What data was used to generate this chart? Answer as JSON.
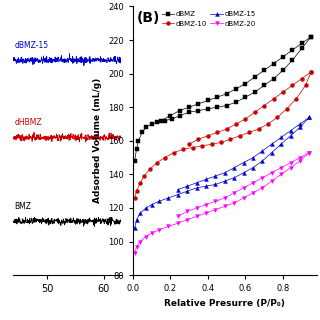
{
  "panel_A": {
    "xlim": [
      44,
      63
    ],
    "ylim": [
      -0.5,
      3.5
    ],
    "x_ticks": [
      50,
      60
    ],
    "lines": [
      {
        "label": "dBMZ-15",
        "y_offset": 2.7,
        "color": "#0000cc",
        "noise": 0.025
      },
      {
        "label": "dHBMZ",
        "y_offset": 1.55,
        "color": "#cc0000",
        "noise": 0.025
      },
      {
        "label": "BMZ",
        "y_offset": 0.3,
        "color": "#000000",
        "noise": 0.025
      }
    ]
  },
  "panel_B": {
    "label": "(B)",
    "xlabel": "Relative Presurre (P/P₀)",
    "ylabel": "Adsorbed Volume (mL/g)",
    "xlim": [
      0.0,
      0.98
    ],
    "ylim": [
      80,
      240
    ],
    "x_ticks": [
      0.0,
      0.2,
      0.4,
      0.6,
      0.8
    ],
    "y_ticks": [
      80,
      100,
      120,
      140,
      160,
      180,
      200,
      220,
      240
    ],
    "series": [
      {
        "label": "dBMZ",
        "color": "#000000",
        "marker": "s",
        "adsorption_x": [
          0.01,
          0.02,
          0.03,
          0.05,
          0.07,
          0.1,
          0.13,
          0.17,
          0.21,
          0.25,
          0.3,
          0.35,
          0.4,
          0.45,
          0.5,
          0.55,
          0.6,
          0.65,
          0.7,
          0.75,
          0.8,
          0.85,
          0.9,
          0.95
        ],
        "adsorption_y": [
          148,
          155,
          160,
          165,
          168,
          170,
          171,
          172,
          173,
          175,
          177,
          178,
          179,
          180,
          181,
          183,
          186,
          189,
          193,
          197,
          202,
          208,
          215,
          222
        ],
        "desorption_x": [
          0.95,
          0.9,
          0.85,
          0.8,
          0.75,
          0.7,
          0.65,
          0.6,
          0.55,
          0.5,
          0.45,
          0.4,
          0.35,
          0.3,
          0.25,
          0.2,
          0.15
        ],
        "desorption_y": [
          222,
          218,
          214,
          210,
          206,
          202,
          198,
          194,
          191,
          188,
          186,
          184,
          182,
          180,
          178,
          175,
          172
        ]
      },
      {
        "label": "dBMZ-10",
        "color": "#cc0000",
        "marker": "o",
        "adsorption_x": [
          0.01,
          0.02,
          0.04,
          0.06,
          0.09,
          0.13,
          0.17,
          0.22,
          0.27,
          0.32,
          0.37,
          0.42,
          0.47,
          0.52,
          0.57,
          0.62,
          0.67,
          0.72,
          0.77,
          0.82,
          0.87,
          0.92,
          0.95
        ],
        "adsorption_y": [
          126,
          130,
          135,
          139,
          143,
          147,
          150,
          153,
          155,
          156,
          157,
          158,
          159,
          161,
          163,
          165,
          167,
          170,
          174,
          179,
          185,
          193,
          201
        ],
        "desorption_x": [
          0.95,
          0.9,
          0.85,
          0.8,
          0.75,
          0.7,
          0.65,
          0.6,
          0.55,
          0.5,
          0.45,
          0.4,
          0.35,
          0.3
        ],
        "desorption_y": [
          201,
          197,
          193,
          189,
          185,
          181,
          177,
          173,
          170,
          167,
          165,
          163,
          161,
          158
        ]
      },
      {
        "label": "dBMZ-15",
        "color": "#0000cc",
        "marker": "^",
        "adsorption_x": [
          0.01,
          0.02,
          0.04,
          0.07,
          0.1,
          0.14,
          0.19,
          0.24,
          0.29,
          0.34,
          0.39,
          0.44,
          0.49,
          0.54,
          0.59,
          0.64,
          0.69,
          0.74,
          0.79,
          0.84,
          0.89,
          0.94
        ],
        "adsorption_y": [
          108,
          113,
          117,
          120,
          122,
          124,
          126,
          128,
          130,
          132,
          133,
          134,
          136,
          138,
          141,
          144,
          148,
          153,
          158,
          163,
          168,
          174
        ],
        "desorption_x": [
          0.94,
          0.89,
          0.84,
          0.79,
          0.74,
          0.69,
          0.64,
          0.59,
          0.54,
          0.49,
          0.44,
          0.39,
          0.34,
          0.29,
          0.24
        ],
        "desorption_y": [
          174,
          170,
          166,
          162,
          158,
          154,
          150,
          147,
          144,
          141,
          139,
          137,
          135,
          133,
          131
        ]
      },
      {
        "label": "dBMZ-20",
        "color": "#ff00ff",
        "marker": "v",
        "adsorption_x": [
          0.01,
          0.02,
          0.04,
          0.07,
          0.1,
          0.14,
          0.19,
          0.24,
          0.29,
          0.34,
          0.39,
          0.44,
          0.49,
          0.54,
          0.59,
          0.64,
          0.69,
          0.74,
          0.79,
          0.84,
          0.89,
          0.94
        ],
        "adsorption_y": [
          93,
          97,
          100,
          103,
          105,
          107,
          109,
          111,
          113,
          115,
          117,
          119,
          121,
          123,
          126,
          129,
          132,
          136,
          140,
          144,
          148,
          153
        ],
        "desorption_x": [
          0.94,
          0.89,
          0.84,
          0.79,
          0.74,
          0.69,
          0.64,
          0.59,
          0.54,
          0.49,
          0.44,
          0.39,
          0.34,
          0.29,
          0.24
        ],
        "desorption_y": [
          153,
          150,
          147,
          144,
          141,
          138,
          135,
          132,
          129,
          126,
          124,
          122,
          120,
          118,
          115
        ]
      }
    ]
  },
  "background_color": "#ffffff"
}
